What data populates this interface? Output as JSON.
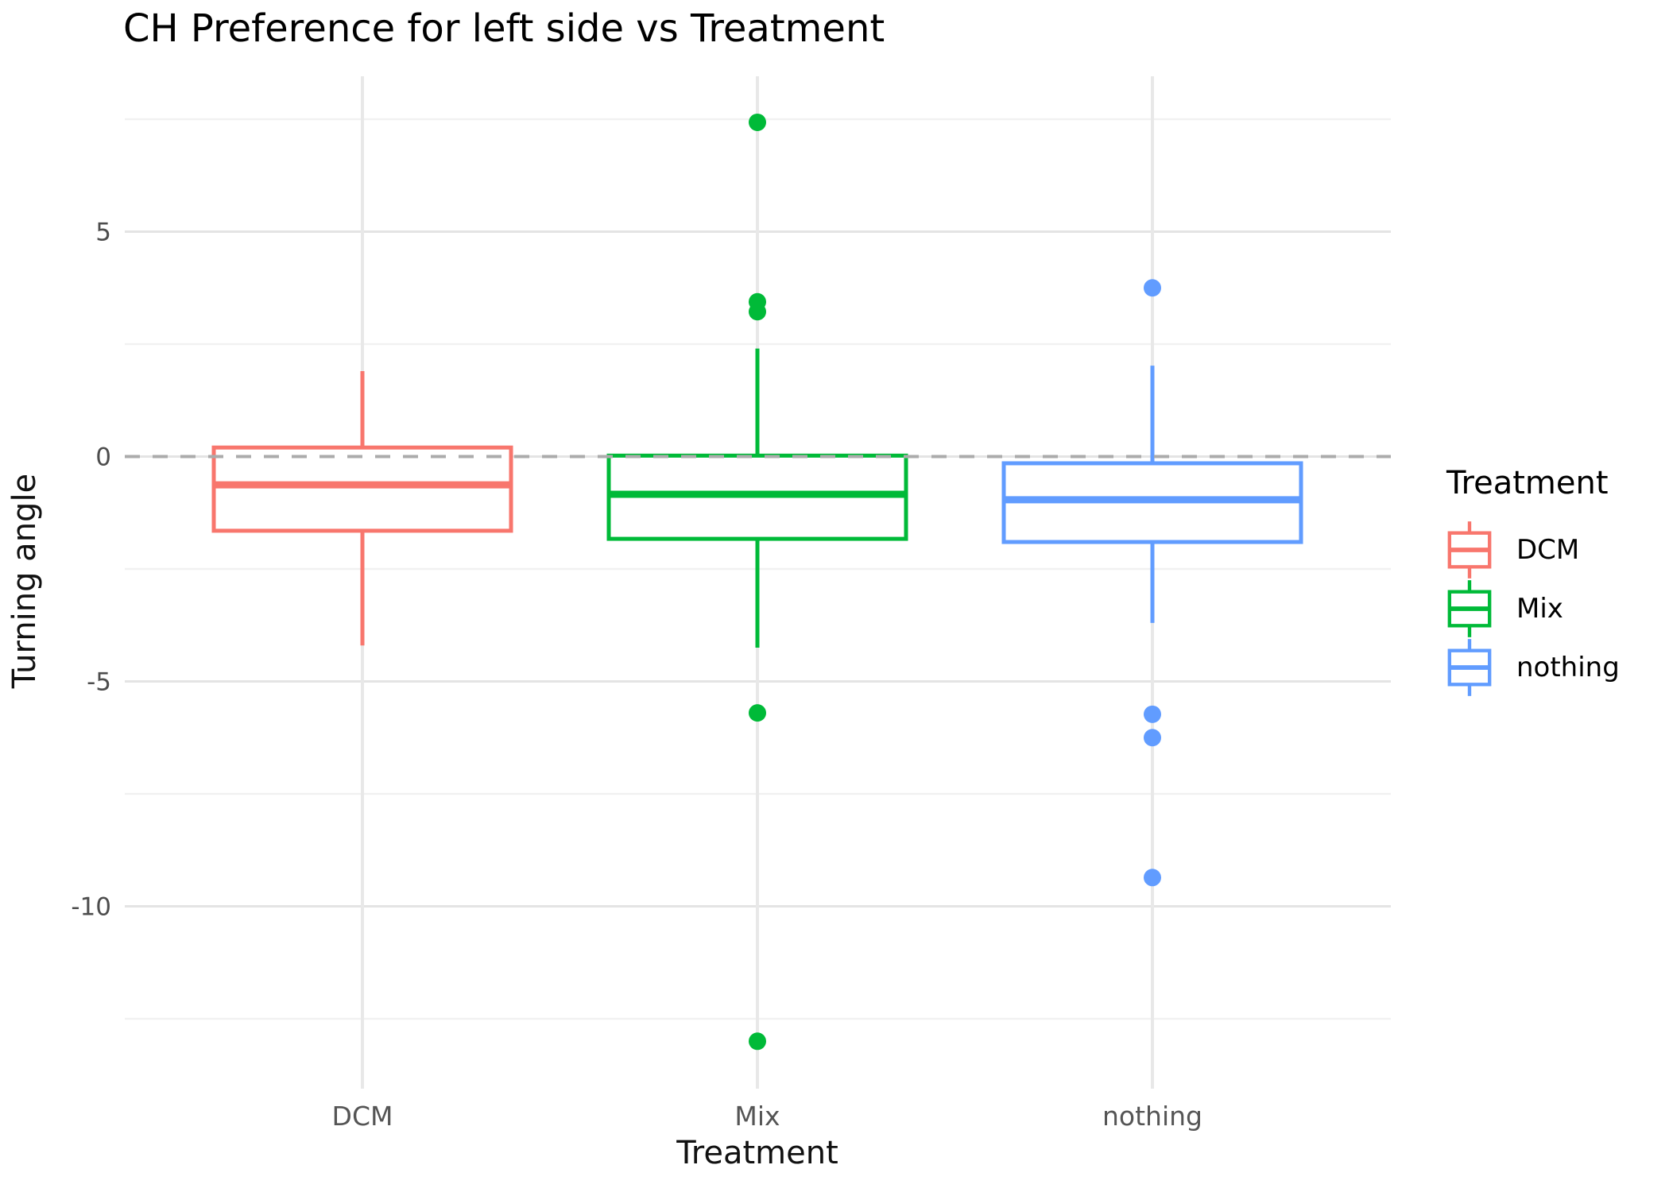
{
  "chart_data": {
    "type": "boxplot",
    "title": "CH Preference for left side vs Treatment",
    "xlabel": "Treatment",
    "ylabel": "Turning angle",
    "categories": [
      "DCM",
      "Mix",
      "nothing"
    ],
    "y_axis": {
      "major_ticks": [
        5,
        0,
        -5,
        -10
      ],
      "minor_ticks": [
        7.5,
        2.5,
        -2.5,
        -7.5,
        -12.5
      ],
      "range": [
        -14.1,
        8.5
      ],
      "grid": true
    },
    "reference_line": {
      "y": 0,
      "style": "dashed"
    },
    "legend": {
      "title": "Treatment",
      "position": "right"
    },
    "series": [
      {
        "name": "DCM",
        "color": "#F8766D",
        "whisker_low": -4.2,
        "q1": -1.65,
        "median": -0.63,
        "q3": 0.2,
        "whisker_high": 1.9,
        "outliers": []
      },
      {
        "name": "Mix",
        "color": "#00BA38",
        "whisker_low": -4.25,
        "q1": -1.83,
        "median": -0.84,
        "q3": 0.02,
        "whisker_high": 2.4,
        "outliers": [
          7.43,
          3.44,
          3.22,
          -5.7,
          -13.0
        ]
      },
      {
        "name": "nothing",
        "color": "#619CFF",
        "whisker_low": -3.7,
        "q1": -1.9,
        "median": -0.96,
        "q3": -0.15,
        "whisker_high": 2.02,
        "outliers": [
          3.75,
          -5.73,
          -6.25,
          -9.36
        ]
      }
    ],
    "style": {
      "box_fill": "#ffffff",
      "grid_major_color": "#E4E4E4",
      "grid_minor_color": "#F1F1F1",
      "grid_vertical_color": "#E8E8E8",
      "reference_line_color": "#ABABAB",
      "tick_label_color": "#4D4D4D",
      "category_label_color": "#555555"
    }
  }
}
